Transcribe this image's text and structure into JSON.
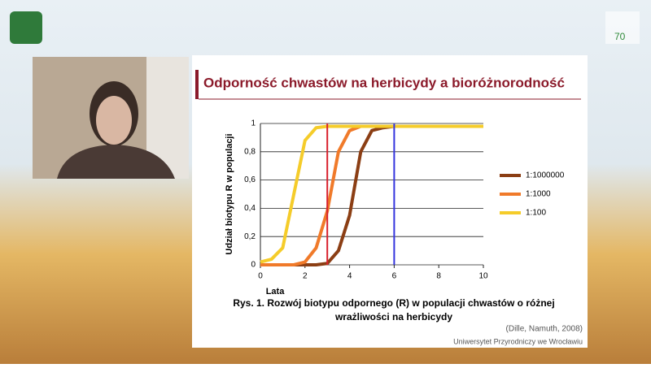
{
  "slide_title": "Odporność chwastów na herbicydy a bioróżnorodność",
  "logo_text": "70",
  "footer": "Uniwersytet Przyrodniczy we Wrocławiu",
  "chart_data": {
    "type": "line",
    "x_label": "Lata",
    "y_label": "Udział biotypu R w populacji",
    "caption": [
      "Rys. 1. Rozwój biotypu odpornego (R) w populacji chwastów o różnej",
      "wrażliwości na herbicydy"
    ],
    "source": "(Dille, Namuth, 2008)",
    "x": [
      0,
      0.5,
      1,
      1.5,
      2,
      2.5,
      3,
      3.5,
      4,
      4.5,
      5,
      5.5,
      6,
      6.5,
      7,
      7.5,
      8,
      8.5,
      9,
      9.5,
      10
    ],
    "series": [
      {
        "name": "1:1000000",
        "color": "#8b3e14",
        "values": [
          0,
          0,
          0,
          0,
          0,
          0,
          0.01,
          0.1,
          0.35,
          0.8,
          0.95,
          0.97,
          0.98,
          0.98,
          0.98,
          0.98,
          0.98,
          0.98,
          0.98,
          0.98,
          0.98
        ]
      },
      {
        "name": "1:1000",
        "color": "#f07a2a",
        "values": [
          0,
          0,
          0,
          0,
          0.02,
          0.12,
          0.38,
          0.8,
          0.95,
          0.98,
          0.98,
          0.98,
          0.98,
          0.98,
          0.98,
          0.98,
          0.98,
          0.98,
          0.98,
          0.98,
          0.98
        ]
      },
      {
        "name": "1:100",
        "color": "#f5cc2a",
        "values": [
          0.02,
          0.04,
          0.12,
          0.5,
          0.88,
          0.97,
          0.98,
          0.98,
          0.98,
          0.98,
          0.98,
          0.98,
          0.98,
          0.98,
          0.98,
          0.98,
          0.98,
          0.98,
          0.98,
          0.98,
          0.98
        ]
      }
    ],
    "reference_lines": [
      {
        "x": 3,
        "color": "#d8202c"
      },
      {
        "x": 6,
        "color": "#3333dd"
      }
    ],
    "xlim": [
      0,
      10
    ],
    "xticks": [
      0,
      2,
      4,
      6,
      8,
      10
    ],
    "ylim": [
      0,
      1
    ],
    "yticks": [
      0,
      {
        "value": 0.2,
        "label": "0,2"
      },
      {
        "value": 0.4,
        "label": "0,4"
      },
      {
        "value": 0.6,
        "label": "0,6"
      },
      {
        "value": 0.8,
        "label": "0,8"
      },
      1
    ],
    "grid": true,
    "legend": "right"
  }
}
